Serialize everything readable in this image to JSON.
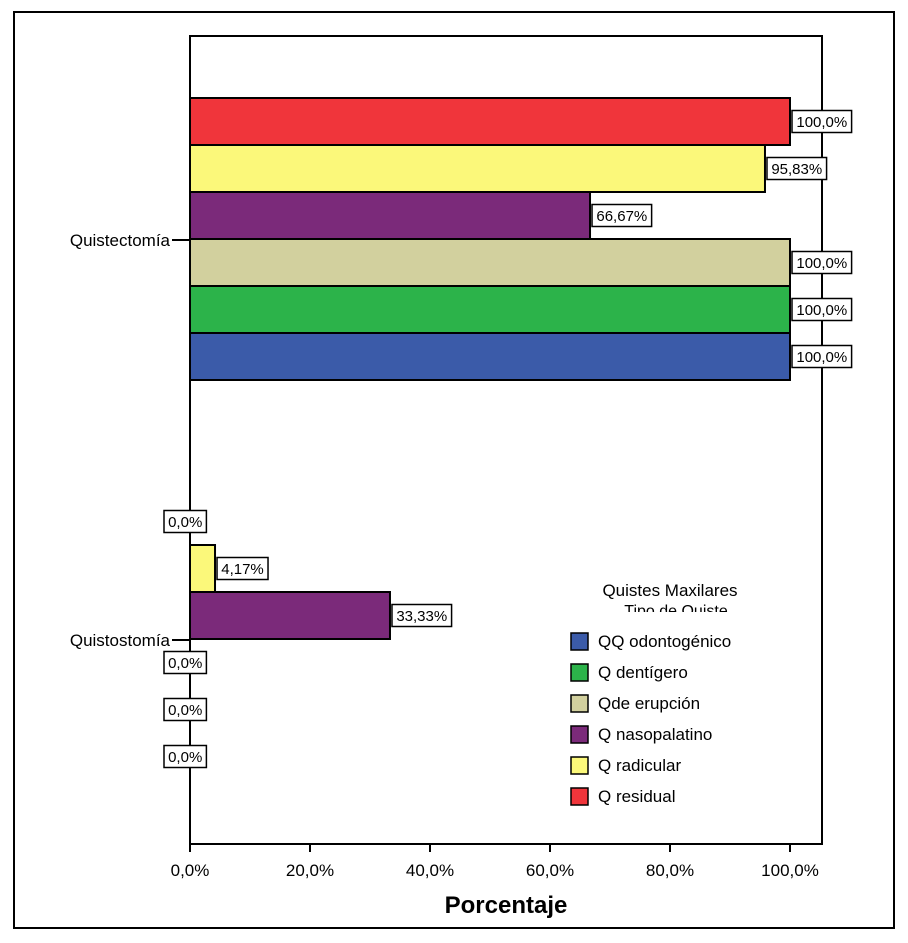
{
  "chart_data": {
    "type": "bar",
    "orientation": "horizontal",
    "categories": [
      "Quistectomía",
      "Quistostomía"
    ],
    "series": [
      {
        "name": "QQ odontogénico",
        "color": "#3b5ba9",
        "values": [
          100.0,
          0.0
        ],
        "labels": [
          "100,0%",
          "0,0%"
        ]
      },
      {
        "name": "Q dentígero",
        "color": "#2cb34a",
        "values": [
          100.0,
          0.0
        ],
        "labels": [
          "100,0%",
          "0,0%"
        ]
      },
      {
        "name": "Qde erupción",
        "color": "#d2d09e",
        "values": [
          100.0,
          0.0
        ],
        "labels": [
          "100,0%",
          "0,0%"
        ]
      },
      {
        "name": "Q nasopalatino",
        "color": "#7b2a7a",
        "values": [
          66.67,
          33.33
        ],
        "labels": [
          "66,67%",
          "33,33%"
        ]
      },
      {
        "name": "Q radicular",
        "color": "#fbf87a",
        "values": [
          95.83,
          4.17
        ],
        "labels": [
          "95,83%",
          "4,17%"
        ]
      },
      {
        "name": "Q residual",
        "color": "#f0353b",
        "values": [
          100.0,
          0.0
        ],
        "labels": [
          "100,0%",
          "0,0%"
        ]
      }
    ],
    "xlabel": "Porcentaje",
    "xlim": [
      0,
      100
    ],
    "xticks": [
      0,
      20,
      40,
      60,
      80,
      100
    ],
    "xtick_labels": [
      "0,0%",
      "20,0%",
      "40,0%",
      "60,0%",
      "80,0%",
      "100,0%"
    ],
    "grid": false,
    "legend": {
      "title": "Quistes  Maxilares",
      "subtitle": "Tipo de Quiste",
      "placement": "bottom-right"
    }
  }
}
